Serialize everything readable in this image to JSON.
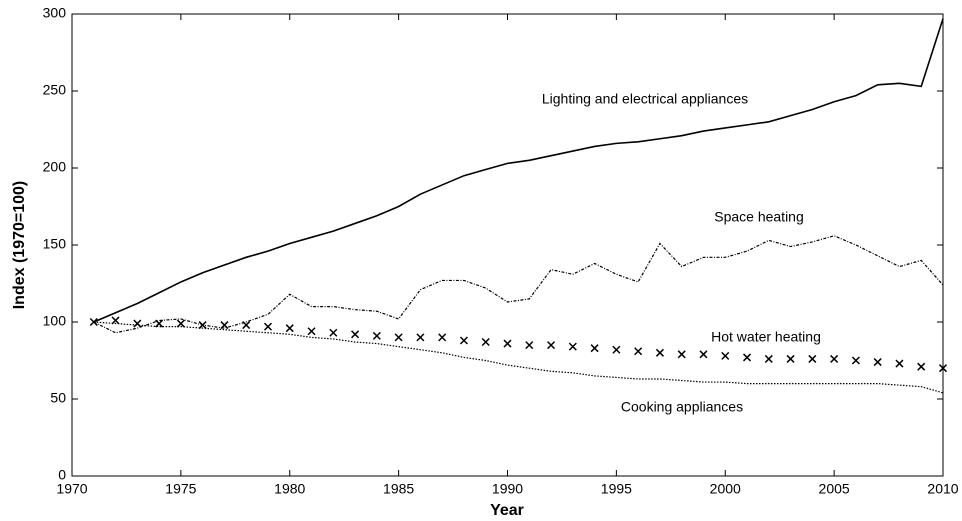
{
  "chart_data": {
    "type": "line",
    "xlabel": "Year",
    "ylabel": "Index (1970=100)",
    "x": [
      1971,
      1972,
      1973,
      1974,
      1975,
      1976,
      1977,
      1978,
      1979,
      1980,
      1981,
      1982,
      1983,
      1984,
      1985,
      1986,
      1987,
      1988,
      1989,
      1990,
      1991,
      1992,
      1993,
      1994,
      1995,
      1996,
      1997,
      1998,
      1999,
      2000,
      2001,
      2002,
      2003,
      2004,
      2005,
      2006,
      2007,
      2008,
      2009,
      2010
    ],
    "series": [
      {
        "name": "Lighting and electrical appliances",
        "color": "#000000",
        "style": "solid",
        "values": [
          100,
          106,
          112,
          119,
          126,
          132,
          137,
          142,
          146,
          151,
          155,
          159,
          164,
          169,
          175,
          183,
          189,
          195,
          199,
          203,
          205,
          208,
          211,
          214,
          216,
          217,
          219,
          221,
          224,
          226,
          228,
          230,
          234,
          238,
          243,
          247,
          254,
          255,
          253,
          297
        ]
      },
      {
        "name": "Space heating",
        "color": "#000000",
        "style": "dashdot",
        "values": [
          100,
          93,
          96,
          101,
          102,
          98,
          96,
          100,
          105,
          118,
          110,
          110,
          108,
          107,
          102,
          121,
          127,
          127,
          122,
          113,
          115,
          134,
          131,
          138,
          131,
          126,
          151,
          136,
          142,
          142,
          146,
          153,
          149,
          152,
          156,
          150,
          143,
          136,
          140,
          124
        ]
      },
      {
        "name": "Hot water heating",
        "color": "#000000",
        "style": "marker",
        "values": [
          100,
          101,
          99,
          99,
          99,
          98,
          98,
          98,
          97,
          96,
          94,
          93,
          92,
          91,
          90,
          90,
          90,
          88,
          87,
          86,
          85,
          85,
          84,
          83,
          82,
          81,
          80,
          79,
          79,
          78,
          77,
          76,
          76,
          76,
          76,
          75,
          74,
          73,
          71,
          70
        ]
      },
      {
        "name": "Cooking appliances",
        "color": "#000000",
        "style": "dotted",
        "values": [
          100,
          99,
          98,
          97,
          97,
          96,
          95,
          94,
          93,
          92,
          90,
          89,
          87,
          86,
          84,
          82,
          80,
          77,
          75,
          72,
          70,
          68,
          67,
          65,
          64,
          63,
          63,
          62,
          61,
          61,
          60,
          60,
          60,
          60,
          60,
          60,
          60,
          59,
          58,
          54
        ]
      }
    ],
    "xlim": [
      1970,
      2010
    ],
    "xticks": [
      1970,
      1975,
      1980,
      1985,
      1990,
      1995,
      2000,
      2005,
      2010
    ],
    "ylim": [
      0,
      300
    ],
    "yticks": [
      0,
      50,
      100,
      150,
      200,
      250,
      300
    ]
  }
}
